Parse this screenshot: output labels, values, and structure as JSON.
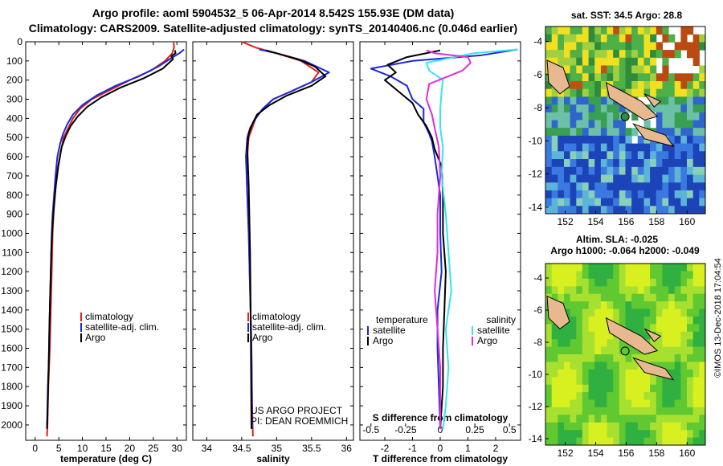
{
  "header": {
    "title_line1": "Argo profile: aoml 5904532_5 06-Apr-2014 8.542S 155.93E (DM data)",
    "title_line2": "Climatology: CARS2009. Satellite-adjusted climatology: synTS_20140406.nc (0.046d earlier)"
  },
  "credit": "©IMOS 13-Dec-2018 17:04:54",
  "colors": {
    "climatology": "#e0201a",
    "satellite": "#1a28d8",
    "argo": "#000000",
    "sat_salinity": "#38e4ec",
    "argo_salinity": "#e02ae0"
  },
  "chart_data": [
    {
      "type": "line",
      "name": "temperature",
      "xlabel": "temperature (deg C)",
      "ylabel": "",
      "xlim": [
        -2,
        32
      ],
      "ylim": [
        2080,
        0
      ],
      "xticks": [
        0,
        5,
        10,
        15,
        20,
        25,
        30
      ],
      "yticks": [
        0,
        100,
        200,
        300,
        400,
        500,
        600,
        700,
        800,
        900,
        1000,
        1100,
        1200,
        1300,
        1400,
        1500,
        1600,
        1700,
        1800,
        1900,
        2000
      ],
      "legend": [
        "climatology",
        "satellite-adj. clim.",
        "Argo"
      ],
      "series": [
        {
          "name": "climatology",
          "color": "#e0201a",
          "x": [
            29.3,
            29.4,
            29.0,
            27.5,
            24.5,
            20,
            16,
            12,
            9.5,
            8,
            7,
            6,
            5.2,
            4.5,
            4.2,
            3.9,
            3.7,
            3.5,
            3.3,
            3.1,
            2.95,
            2.8,
            2.7,
            2.6,
            2.5
          ],
          "y": [
            0,
            30,
            60,
            100,
            150,
            200,
            250,
            300,
            350,
            400,
            450,
            500,
            600,
            700,
            800,
            900,
            1000,
            1200,
            1400,
            1600,
            1700,
            1800,
            1900,
            2000,
            2060
          ]
        },
        {
          "name": "satellite-adj. clim.",
          "color": "#1a28d8",
          "x": [
            31.5,
            30.5,
            28.5,
            26,
            22,
            17,
            13,
            10,
            8,
            6.8,
            5.9,
            5.3,
            4.7,
            4.3,
            4.0,
            3.7,
            3.5,
            3.3,
            3.1,
            2.95,
            2.85,
            2.7,
            2.6,
            2.5
          ],
          "y": [
            40,
            60,
            90,
            130,
            180,
            230,
            280,
            330,
            380,
            430,
            480,
            530,
            600,
            700,
            800,
            900,
            1000,
            1200,
            1400,
            1600,
            1700,
            1800,
            1900,
            2020
          ]
        },
        {
          "name": "Argo",
          "color": "#000000",
          "x": [
            29.6,
            29.7,
            28.8,
            29.2,
            27,
            23,
            18,
            14,
            11,
            9,
            7.5,
            6.5,
            5.6,
            4.9,
            4.4,
            4.0,
            3.7,
            3.4,
            3.2,
            3.0,
            2.9,
            2.75,
            2.6,
            2.5
          ],
          "y": [
            45,
            60,
            75,
            90,
            140,
            190,
            240,
            290,
            340,
            390,
            440,
            490,
            550,
            650,
            750,
            850,
            950,
            1100,
            1300,
            1500,
            1650,
            1800,
            1950,
            2020
          ]
        }
      ]
    },
    {
      "type": "line",
      "name": "salinity",
      "xlabel": "salinity",
      "xlim": [
        33.8,
        36.1
      ],
      "ylim": [
        2080,
        0
      ],
      "xticks": [
        34,
        34.5,
        35,
        35.5,
        36
      ],
      "legend": [
        "climatology",
        "satellite-adj. clim.",
        "Argo"
      ],
      "annotation": [
        "US ARGO PROJECT",
        "PI: DEAN ROEMMICH"
      ],
      "series": [
        {
          "name": "climatology",
          "color": "#e0201a",
          "x": [
            34.5,
            34.7,
            35.0,
            35.35,
            35.6,
            35.5,
            35.2,
            34.95,
            34.8,
            34.7,
            34.65,
            34.6,
            34.58,
            34.57,
            34.58,
            34.6,
            34.62,
            34.64,
            34.65,
            34.66
          ],
          "y": [
            0,
            30,
            60,
            100,
            160,
            210,
            260,
            300,
            350,
            400,
            450,
            500,
            600,
            700,
            800,
            1000,
            1300,
            1600,
            1900,
            2060
          ]
        },
        {
          "name": "satellite-adj. clim.",
          "color": "#1a28d8",
          "x": [
            34.75,
            35.0,
            35.4,
            35.75,
            35.5,
            35.2,
            34.95,
            34.8,
            34.7,
            34.62,
            34.58,
            34.56,
            34.57,
            34.6,
            34.62,
            34.64,
            34.65
          ],
          "y": [
            40,
            60,
            100,
            160,
            210,
            260,
            300,
            350,
            400,
            450,
            500,
            600,
            700,
            1000,
            1300,
            1600,
            2020
          ]
        },
        {
          "name": "Argo",
          "color": "#000000",
          "x": [
            34.85,
            35.1,
            35.3,
            35.55,
            35.7,
            35.5,
            35.15,
            34.9,
            34.72,
            34.65,
            34.6,
            34.58,
            34.6,
            34.62,
            34.63,
            34.64
          ],
          "y": [
            45,
            70,
            90,
            130,
            180,
            230,
            280,
            330,
            380,
            430,
            480,
            550,
            750,
            1100,
            1500,
            2020
          ]
        }
      ]
    },
    {
      "type": "line",
      "name": "differences",
      "xlabel": "T difference from climatology",
      "xlabel2": "S difference from climatology",
      "xlim": [
        -2.9,
        2.9
      ],
      "ylim": [
        2080,
        0
      ],
      "xticks": [
        -2,
        -1,
        0,
        1,
        2
      ],
      "xticks2": [
        -0.5,
        -0.25,
        0,
        0.25,
        0.5
      ],
      "legend_left_title": "temperature",
      "legend_right_title": "salinity",
      "legend_left": [
        "satellite",
        "Argo"
      ],
      "legend_right": [
        "satellite",
        "Argo"
      ],
      "series": [
        {
          "name": "T satellite",
          "color": "#1a28d8",
          "x": [
            2.8,
            1.5,
            -1.0,
            -2.5,
            -1.8,
            -1.2,
            -1.0,
            -0.6,
            -0.6,
            -0.4,
            -0.3,
            -0.2,
            -0.1,
            0.0,
            0.0,
            0.05,
            -0.1,
            -0.1,
            -0.05,
            0.0
          ],
          "y": [
            40,
            70,
            100,
            140,
            180,
            230,
            300,
            350,
            420,
            480,
            520,
            600,
            700,
            800,
            1000,
            1200,
            1400,
            1600,
            1800,
            2020
          ]
        },
        {
          "name": "T Argo",
          "color": "#000000",
          "x": [
            0.0,
            -1.2,
            -1.9,
            -1.6,
            -2.0,
            -1.5,
            -1.0,
            -0.8,
            -0.5,
            -0.3,
            -0.2,
            0.05,
            0.1,
            0.1,
            0.2,
            0.15,
            0.1,
            0.1,
            0.0
          ],
          "y": [
            45,
            80,
            120,
            160,
            200,
            260,
            320,
            380,
            440,
            500,
            560,
            650,
            800,
            1000,
            1200,
            1400,
            1600,
            1800,
            2020
          ]
        },
        {
          "name": "S satellite",
          "color": "#38e4ec",
          "x": [
            2.8,
            1.2,
            0.5,
            -0.5,
            -0.4,
            0.1,
            0.05,
            0.0,
            0.0,
            0.1,
            0.05,
            0.2,
            0.3,
            0.4,
            0.2,
            0.3,
            0.2,
            0.1
          ],
          "y": [
            40,
            60,
            80,
            110,
            150,
            200,
            260,
            350,
            450,
            550,
            700,
            900,
            1100,
            1300,
            1500,
            1700,
            1900,
            2020
          ]
        },
        {
          "name": "S Argo",
          "color": "#e02ae0",
          "x": [
            -0.5,
            -0.2,
            1.0,
            1.1,
            0.8,
            -0.4,
            -0.5,
            -0.3,
            -0.2,
            -0.05,
            0.0,
            -0.1,
            -0.1,
            -0.2,
            -0.1,
            0.0,
            0.0
          ],
          "y": [
            45,
            60,
            80,
            110,
            150,
            220,
            300,
            380,
            450,
            550,
            700,
            900,
            1100,
            1300,
            1500,
            1700,
            2020
          ]
        }
      ]
    }
  ],
  "maps": {
    "sst_title": "sat. SST: 34.5 Argo: 28.8",
    "sla_title1": "Altim. SLA: -0.025",
    "sla_title2": "Argo h1000: -0.064 h2000: -0.049",
    "xticks": [
      "152",
      "154",
      "156",
      "158",
      "160"
    ],
    "yticks": [
      "-4",
      "-6",
      "-8",
      "-10",
      "-12",
      "-14"
    ]
  }
}
